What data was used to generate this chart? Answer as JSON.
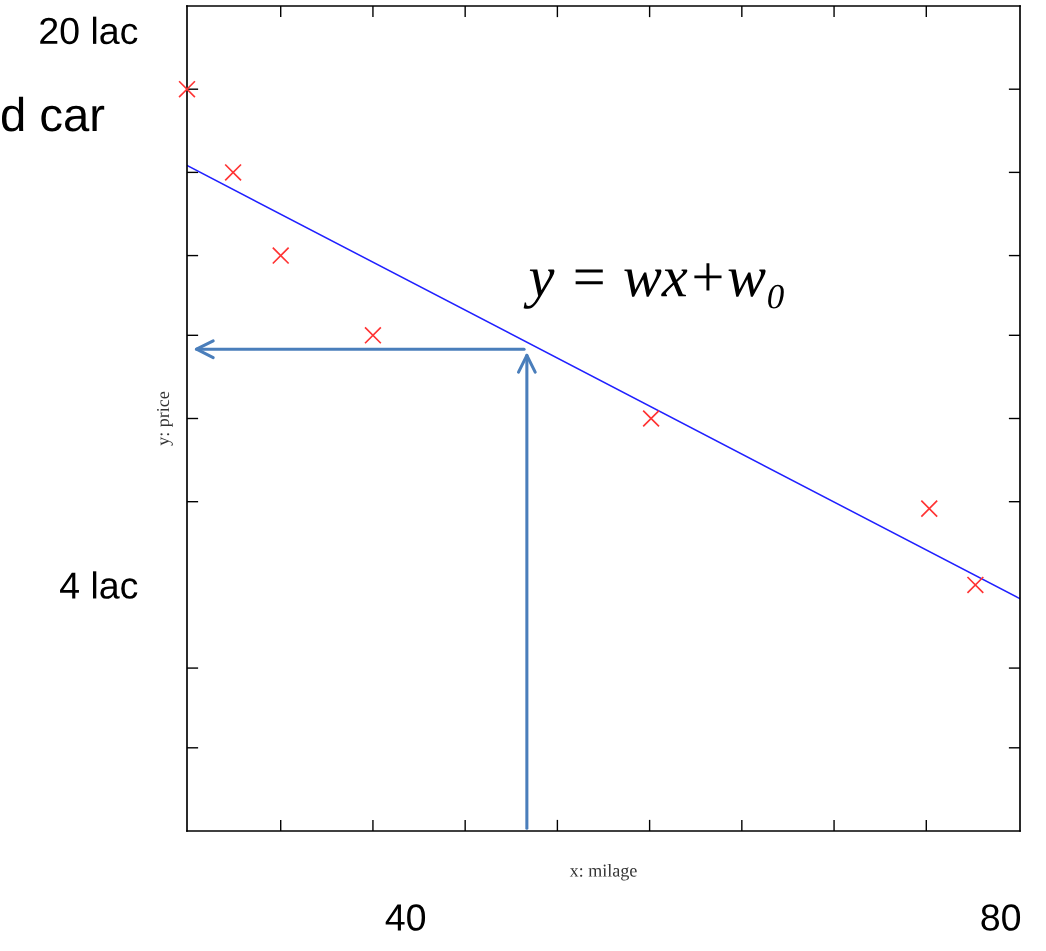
{
  "chart_data": {
    "type": "scatter",
    "xlabel": "x: milage",
    "ylabel": "y: price",
    "xlim": [
      25.3,
      81.3
    ],
    "ylim": [
      -3.1,
      20.7
    ],
    "xticks": [
      {
        "value": 31.6,
        "label": null
      },
      {
        "value": 37.8,
        "label": null
      },
      40,
      {
        "value": 44.0,
        "label": null
      },
      {
        "value": 50.2,
        "label": null
      },
      {
        "value": 56.4,
        "label": null
      },
      {
        "value": 62.6,
        "label": null
      },
      {
        "value": 68.8,
        "label": null
      },
      {
        "value": 75.0,
        "label": null
      },
      80
    ],
    "yticks": [
      {
        "value": -0.7,
        "label": null
      },
      {
        "value": 1.6,
        "label": null
      },
      {
        "value": 4,
        "label": "4 lac"
      },
      {
        "value": 6.4,
        "label": null
      },
      {
        "value": 8.8,
        "label": null
      },
      {
        "value": 11.2,
        "label": null
      },
      {
        "value": 13.5,
        "label": null
      },
      {
        "value": 15.9,
        "label": null
      },
      {
        "value": 18.3,
        "label": null
      },
      {
        "value": 20,
        "label": "20 lac"
      }
    ],
    "series": [
      {
        "color": "#ff3333",
        "marker": "cross",
        "x": [
          25.3,
          28.4,
          31.6,
          37.8,
          56.5,
          75.2,
          78.3
        ],
        "values": [
          18.3,
          15.9,
          13.5,
          11.2,
          8.8,
          6.2,
          4.0
        ]
      },
      {
        "type": "line",
        "color": "#2020ff",
        "marker": "none",
        "line_style": "solid",
        "x": [
          25.3,
          81.3
        ],
        "values": [
          16.1,
          3.6
        ]
      }
    ],
    "annotations": [
      "y = wx+w₀",
      "d car"
    ],
    "grid": false,
    "legend": false
  }
}
